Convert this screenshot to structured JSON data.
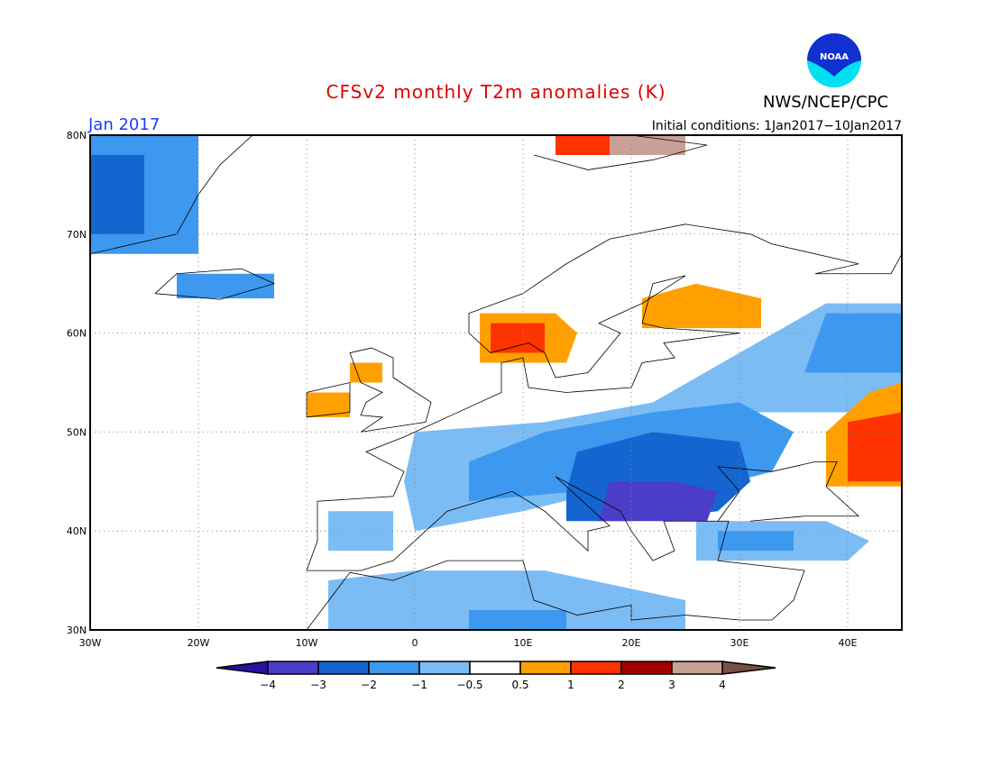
{
  "header": {
    "title": "CFSv2 monthly T2m anomalies (K)",
    "month": "Jan 2017",
    "initial_conditions": "Initial conditions: 1Jan2017−10Jan2017",
    "agency": "NWS/NCEP/CPC",
    "logo_text": "NOAA"
  },
  "chart_data": {
    "type": "heatmap",
    "title": "CFSv2 monthly T2m anomalies (K)",
    "lon_range": [
      -30,
      45
    ],
    "lat_range": [
      30,
      80
    ],
    "x_ticks": [
      {
        "v": -30,
        "label": "30W"
      },
      {
        "v": -20,
        "label": "20W"
      },
      {
        "v": -10,
        "label": "10W"
      },
      {
        "v": 0,
        "label": "0"
      },
      {
        "v": 10,
        "label": "10E"
      },
      {
        "v": 20,
        "label": "20E"
      },
      {
        "v": 30,
        "label": "30E"
      },
      {
        "v": 40,
        "label": "40E"
      }
    ],
    "y_ticks": [
      {
        "v": 30,
        "label": "30N"
      },
      {
        "v": 40,
        "label": "40N"
      },
      {
        "v": 50,
        "label": "50N"
      },
      {
        "v": 60,
        "label": "60N"
      },
      {
        "v": 70,
        "label": "70N"
      },
      {
        "v": 80,
        "label": "80N"
      }
    ],
    "grid": true,
    "colorbar": {
      "labels": [
        "−4",
        "−3",
        "−2",
        "−1",
        "−0.5",
        "0.5",
        "1",
        "2",
        "3",
        "4"
      ],
      "colors": [
        "#2a0fa0",
        "#4b3dc8",
        "#1565d0",
        "#3d98f0",
        "#7cbcf5",
        "#ffffff",
        "#ffa000",
        "#ff3300",
        "#a00000",
        "#c8a096",
        "#7a5044"
      ]
    },
    "regions": [
      {
        "level": -1.5,
        "poly": [
          [
            -30,
            68
          ],
          [
            -20,
            68
          ],
          [
            -20,
            80
          ],
          [
            -30,
            80
          ]
        ]
      },
      {
        "level": -2.5,
        "poly": [
          [
            -30,
            70
          ],
          [
            -25,
            70
          ],
          [
            -25,
            78
          ],
          [
            -30,
            78
          ]
        ]
      },
      {
        "level": -1.5,
        "poly": [
          [
            -22,
            63.5
          ],
          [
            -13,
            63.5
          ],
          [
            -13,
            66
          ],
          [
            -22,
            66
          ]
        ]
      },
      {
        "level": 0.75,
        "poly": [
          [
            -10,
            51.5
          ],
          [
            -6,
            51.5
          ],
          [
            -6,
            54
          ],
          [
            -10,
            54
          ]
        ]
      },
      {
        "level": 0.75,
        "poly": [
          [
            -6,
            55
          ],
          [
            -3,
            55
          ],
          [
            -3,
            57
          ],
          [
            -6,
            57
          ]
        ]
      },
      {
        "level": 0.75,
        "poly": [
          [
            6,
            57
          ],
          [
            14,
            57
          ],
          [
            15,
            60
          ],
          [
            13,
            62
          ],
          [
            6,
            62
          ]
        ]
      },
      {
        "level": 1.5,
        "poly": [
          [
            7,
            58
          ],
          [
            12,
            58
          ],
          [
            12,
            61
          ],
          [
            7,
            61
          ]
        ]
      },
      {
        "level": 0.75,
        "poly": [
          [
            21,
            60.5
          ],
          [
            32,
            60.5
          ],
          [
            32,
            63.5
          ],
          [
            26,
            65
          ],
          [
            21,
            63.5
          ]
        ]
      },
      {
        "level": 1.5,
        "poly": [
          [
            13,
            78
          ],
          [
            18,
            78
          ],
          [
            18,
            80
          ],
          [
            13,
            80
          ]
        ]
      },
      {
        "level": 3.5,
        "poly": [
          [
            18,
            78
          ],
          [
            25,
            78
          ],
          [
            25,
            80
          ],
          [
            18,
            80
          ]
        ]
      },
      {
        "level": -0.75,
        "poly": [
          [
            -8,
            38
          ],
          [
            -2,
            38
          ],
          [
            -2,
            42
          ],
          [
            -8,
            42
          ]
        ]
      },
      {
        "level": -0.75,
        "poly": [
          [
            0,
            40
          ],
          [
            10,
            42
          ],
          [
            25,
            46
          ],
          [
            30,
            52
          ],
          [
            40,
            52
          ],
          [
            45,
            55
          ],
          [
            45,
            63
          ],
          [
            38,
            63
          ],
          [
            30,
            58
          ],
          [
            22,
            53
          ],
          [
            12,
            51
          ],
          [
            0,
            50
          ],
          [
            -1,
            45
          ]
        ]
      },
      {
        "level": -1.5,
        "poly": [
          [
            5,
            43
          ],
          [
            15,
            44
          ],
          [
            26,
            44
          ],
          [
            33,
            46
          ],
          [
            35,
            50
          ],
          [
            30,
            53
          ],
          [
            22,
            52
          ],
          [
            12,
            50
          ],
          [
            5,
            47
          ]
        ]
      },
      {
        "level": -1.5,
        "poly": [
          [
            36,
            56
          ],
          [
            45,
            56
          ],
          [
            45,
            62
          ],
          [
            38,
            62
          ]
        ]
      },
      {
        "level": -2.5,
        "poly": [
          [
            14,
            41
          ],
          [
            20,
            41
          ],
          [
            28,
            42
          ],
          [
            31,
            45
          ],
          [
            30,
            49
          ],
          [
            22,
            50
          ],
          [
            15,
            48
          ],
          [
            14,
            44
          ]
        ]
      },
      {
        "level": -3.5,
        "poly": [
          [
            17,
            41
          ],
          [
            27,
            41
          ],
          [
            28,
            44
          ],
          [
            24,
            45
          ],
          [
            18,
            45
          ]
        ]
      },
      {
        "level": -0.75,
        "poly": [
          [
            -8,
            30
          ],
          [
            25,
            30
          ],
          [
            25,
            33
          ],
          [
            12,
            36
          ],
          [
            0,
            36
          ],
          [
            -8,
            35
          ]
        ]
      },
      {
        "level": -1.5,
        "poly": [
          [
            5,
            30
          ],
          [
            14,
            30
          ],
          [
            14,
            32
          ],
          [
            5,
            32
          ]
        ]
      },
      {
        "level": -0.75,
        "poly": [
          [
            26,
            37
          ],
          [
            40,
            37
          ],
          [
            42,
            39
          ],
          [
            38,
            41
          ],
          [
            26,
            41
          ]
        ]
      },
      {
        "level": -1.5,
        "poly": [
          [
            28,
            38
          ],
          [
            35,
            38
          ],
          [
            35,
            40
          ],
          [
            28,
            40
          ]
        ]
      },
      {
        "level": 0.75,
        "poly": [
          [
            38,
            44.5
          ],
          [
            45,
            44.5
          ],
          [
            45,
            55
          ],
          [
            42,
            54
          ],
          [
            38,
            50
          ]
        ]
      },
      {
        "level": 1.5,
        "poly": [
          [
            40,
            45
          ],
          [
            45,
            45
          ],
          [
            45,
            52
          ],
          [
            40,
            51
          ]
        ]
      }
    ]
  }
}
